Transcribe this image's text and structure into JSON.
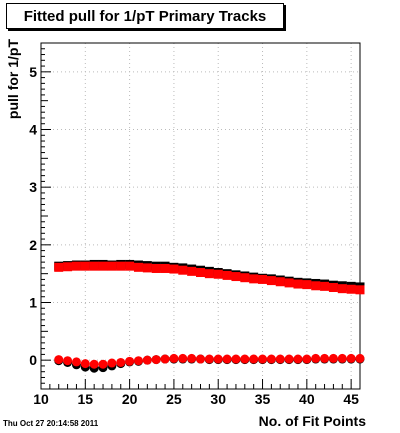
{
  "chart_data": {
    "type": "scatter",
    "title": "Fitted pull for 1/pT Primary Tracks",
    "xlabel": "No. of Fit Points",
    "ylabel": "pull for 1/pT",
    "xlim": [
      10,
      46
    ],
    "ylim": [
      -0.5,
      5.5
    ],
    "xticks": [
      10,
      15,
      20,
      25,
      30,
      35,
      40,
      45
    ],
    "yticks": [
      0,
      1,
      2,
      3,
      4,
      5
    ],
    "grid": true,
    "series": [
      {
        "color": "#000000",
        "marker": "square",
        "x": [
          12,
          13,
          14,
          15,
          16,
          17,
          18,
          19,
          20,
          21,
          22,
          23,
          24,
          25,
          26,
          27,
          28,
          29,
          30,
          31,
          32,
          33,
          34,
          35,
          36,
          37,
          38,
          39,
          40,
          41,
          42,
          43,
          44,
          45,
          46
        ],
        "y": [
          1.63,
          1.64,
          1.65,
          1.65,
          1.66,
          1.66,
          1.65,
          1.66,
          1.66,
          1.65,
          1.64,
          1.63,
          1.63,
          1.61,
          1.6,
          1.58,
          1.56,
          1.54,
          1.52,
          1.5,
          1.48,
          1.46,
          1.44,
          1.42,
          1.41,
          1.39,
          1.37,
          1.35,
          1.34,
          1.33,
          1.32,
          1.3,
          1.29,
          1.28,
          1.27
        ]
      },
      {
        "color": "#ff0000",
        "marker": "square",
        "x": [
          12,
          13,
          14,
          15,
          16,
          17,
          18,
          19,
          20,
          21,
          22,
          23,
          24,
          25,
          26,
          27,
          28,
          29,
          30,
          31,
          32,
          33,
          34,
          35,
          36,
          37,
          38,
          39,
          40,
          41,
          42,
          43,
          44,
          45,
          46
        ],
        "y": [
          1.61,
          1.62,
          1.63,
          1.63,
          1.63,
          1.63,
          1.63,
          1.63,
          1.63,
          1.61,
          1.6,
          1.59,
          1.59,
          1.58,
          1.56,
          1.54,
          1.52,
          1.5,
          1.49,
          1.47,
          1.45,
          1.43,
          1.41,
          1.4,
          1.38,
          1.36,
          1.34,
          1.32,
          1.31,
          1.29,
          1.28,
          1.26,
          1.24,
          1.23,
          1.22
        ]
      },
      {
        "color": "#000000",
        "marker": "circle",
        "x": [
          12,
          13,
          14,
          15,
          16,
          17,
          18,
          19,
          20,
          21,
          22,
          23,
          24,
          25,
          26,
          27,
          28,
          29,
          30,
          31,
          32,
          33,
          34,
          35,
          36,
          37,
          38,
          39,
          40,
          41,
          42,
          43,
          44,
          45,
          46
        ],
        "y": [
          -0.01,
          -0.04,
          -0.08,
          -0.12,
          -0.14,
          -0.13,
          -0.1,
          -0.06,
          -0.03,
          -0.02,
          0.0,
          0.01,
          0.02,
          0.02,
          0.02,
          0.02,
          0.02,
          0.01,
          0.01,
          0.01,
          0.01,
          0.01,
          0.01,
          0.01,
          0.01,
          0.01,
          0.01,
          0.01,
          0.01,
          0.02,
          0.02,
          0.02,
          0.02,
          0.02,
          0.02
        ]
      },
      {
        "color": "#ff0000",
        "marker": "circle",
        "x": [
          12,
          13,
          14,
          15,
          16,
          17,
          18,
          19,
          20,
          21,
          22,
          23,
          24,
          25,
          26,
          27,
          28,
          29,
          30,
          31,
          32,
          33,
          34,
          35,
          36,
          37,
          38,
          39,
          40,
          41,
          42,
          43,
          44,
          45,
          46
        ],
        "y": [
          0.01,
          -0.01,
          -0.03,
          -0.06,
          -0.07,
          -0.07,
          -0.05,
          -0.04,
          -0.02,
          -0.01,
          0.0,
          0.01,
          0.02,
          0.03,
          0.03,
          0.03,
          0.02,
          0.02,
          0.02,
          0.02,
          0.02,
          0.02,
          0.02,
          0.02,
          0.02,
          0.02,
          0.02,
          0.02,
          0.02,
          0.03,
          0.03,
          0.03,
          0.03,
          0.03,
          0.03
        ]
      }
    ]
  },
  "footer": {
    "timestamp": "Thu Oct 27 20:14:58 2011"
  }
}
